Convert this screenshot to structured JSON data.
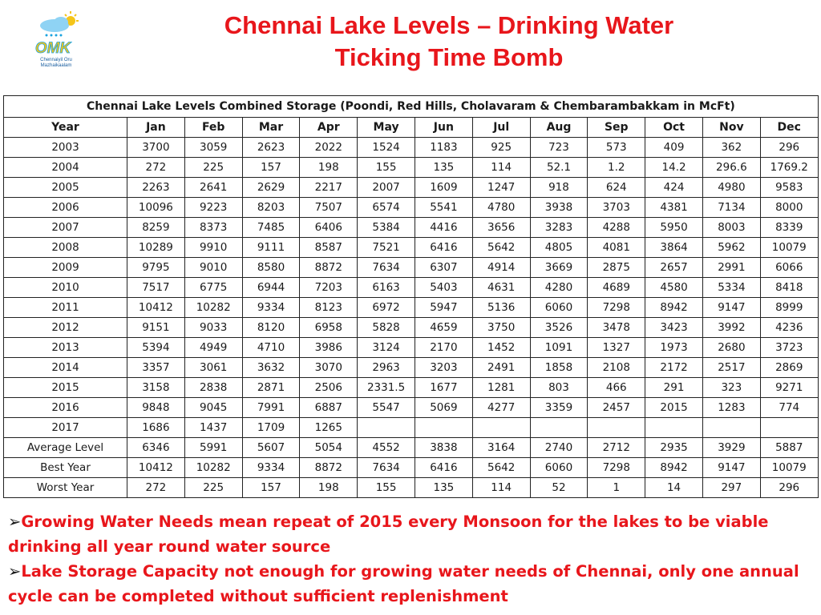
{
  "logo": {
    "initials": "OMK",
    "tagline_line1": "Chennaiyil Oru",
    "tagline_line2": "Mazhaikaalam"
  },
  "title": {
    "line1": "Chennai Lake Levels – Drinking Water",
    "line2": "Ticking Time Bomb"
  },
  "table": {
    "caption": "Chennai Lake Levels Combined Storage (Poondi, Red Hills, Cholavaram & Chembarambakkam in McFt)",
    "headers": [
      "Year",
      "Jan",
      "Feb",
      "Mar",
      "Apr",
      "May",
      "Jun",
      "Jul",
      "Aug",
      "Sep",
      "Oct",
      "Nov",
      "Dec"
    ],
    "rows": [
      [
        "2003",
        "3700",
        "3059",
        "2623",
        "2022",
        "1524",
        "1183",
        "925",
        "723",
        "573",
        "409",
        "362",
        "296"
      ],
      [
        "2004",
        "272",
        "225",
        "157",
        "198",
        "155",
        "135",
        "114",
        "52.1",
        "1.2",
        "14.2",
        "296.6",
        "1769.2"
      ],
      [
        "2005",
        "2263",
        "2641",
        "2629",
        "2217",
        "2007",
        "1609",
        "1247",
        "918",
        "624",
        "424",
        "4980",
        "9583"
      ],
      [
        "2006",
        "10096",
        "9223",
        "8203",
        "7507",
        "6574",
        "5541",
        "4780",
        "3938",
        "3703",
        "4381",
        "7134",
        "8000"
      ],
      [
        "2007",
        "8259",
        "8373",
        "7485",
        "6406",
        "5384",
        "4416",
        "3656",
        "3283",
        "4288",
        "5950",
        "8003",
        "8339"
      ],
      [
        "2008",
        "10289",
        "9910",
        "9111",
        "8587",
        "7521",
        "6416",
        "5642",
        "4805",
        "4081",
        "3864",
        "5962",
        "10079"
      ],
      [
        "2009",
        "9795",
        "9010",
        "8580",
        "8872",
        "7634",
        "6307",
        "4914",
        "3669",
        "2875",
        "2657",
        "2991",
        "6066"
      ],
      [
        "2010",
        "7517",
        "6775",
        "6944",
        "7203",
        "6163",
        "5403",
        "4631",
        "4280",
        "4689",
        "4580",
        "5334",
        "8418"
      ],
      [
        "2011",
        "10412",
        "10282",
        "9334",
        "8123",
        "6972",
        "5947",
        "5136",
        "6060",
        "7298",
        "8942",
        "9147",
        "8999"
      ],
      [
        "2012",
        "9151",
        "9033",
        "8120",
        "6958",
        "5828",
        "4659",
        "3750",
        "3526",
        "3478",
        "3423",
        "3992",
        "4236"
      ],
      [
        "2013",
        "5394",
        "4949",
        "4710",
        "3986",
        "3124",
        "2170",
        "1452",
        "1091",
        "1327",
        "1973",
        "2680",
        "3723"
      ],
      [
        "2014",
        "3357",
        "3061",
        "3632",
        "3070",
        "2963",
        "3203",
        "2491",
        "1858",
        "2108",
        "2172",
        "2517",
        "2869"
      ],
      [
        "2015",
        "3158",
        "2838",
        "2871",
        "2506",
        "2331.5",
        "1677",
        "1281",
        "803",
        "466",
        "291",
        "323",
        "9271"
      ],
      [
        "2016",
        "9848",
        "9045",
        "7991",
        "6887",
        "5547",
        "5069",
        "4277",
        "3359",
        "2457",
        "2015",
        "1283",
        "774"
      ],
      [
        "2017",
        "1686",
        "1437",
        "1709",
        "1265",
        "",
        "",
        "",
        "",
        "",
        "",
        "",
        ""
      ],
      [
        "Average Level",
        "6346",
        "5991",
        "5607",
        "5054",
        "4552",
        "3838",
        "3164",
        "2740",
        "2712",
        "2935",
        "3929",
        "5887"
      ],
      [
        "Best Year",
        "10412",
        "10282",
        "9334",
        "8872",
        "7634",
        "6416",
        "5642",
        "6060",
        "7298",
        "8942",
        "9147",
        "10079"
      ],
      [
        "Worst Year",
        "272",
        "225",
        "157",
        "198",
        "155",
        "135",
        "114",
        "52",
        "1",
        "14",
        "297",
        "296"
      ]
    ]
  },
  "bullets": [
    {
      "arrow": "➢",
      "text": "Growing Water Needs mean repeat of 2015 every Monsoon for the lakes to be viable drinking all year round water source"
    },
    {
      "arrow": "➢",
      "text": "Lake Storage Capacity not enough for growing water needs of Chennai, only one annual cycle can be completed without sufficient replenishment"
    }
  ],
  "colors": {
    "title": "#e8161b",
    "logo_blue": "#1aa3e0",
    "logo_yellow": "#f5c518",
    "grid": "#222222"
  }
}
